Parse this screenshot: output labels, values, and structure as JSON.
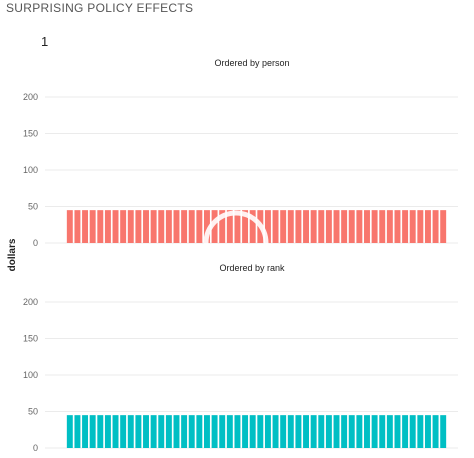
{
  "header": {
    "title": "SURPRISING POLICY EFFECTS"
  },
  "slide": {
    "number": "1"
  },
  "loading_indicator": {
    "icon": "loading-spinner-icon",
    "color": "#ffffff"
  },
  "chart_data": {
    "type": "bar",
    "ylabel": "dollars",
    "panels": [
      {
        "title": "Ordered by person",
        "color": "#F8766D",
        "yticks": [
          0,
          50,
          100,
          150,
          200
        ],
        "ylim": [
          0,
          200
        ],
        "x_ticks_shown": false,
        "values": [
          45,
          45,
          45,
          45,
          45,
          45,
          45,
          45,
          45,
          45,
          45,
          45,
          45,
          45,
          45,
          45,
          45,
          45,
          45,
          45,
          45,
          45,
          45,
          45,
          45,
          45,
          45,
          45,
          45,
          45,
          45,
          45,
          45,
          45,
          45,
          45,
          45,
          45,
          45,
          45,
          45,
          45,
          45,
          45,
          45,
          45,
          45,
          45,
          45,
          45
        ]
      },
      {
        "title": "Ordered by rank",
        "color": "#00BFC4",
        "yticks": [
          0,
          50,
          100,
          150,
          200
        ],
        "ylim": [
          0,
          200
        ],
        "x_ticks_shown": false,
        "values": [
          45,
          45,
          45,
          45,
          45,
          45,
          45,
          45,
          45,
          45,
          45,
          45,
          45,
          45,
          45,
          45,
          45,
          45,
          45,
          45,
          45,
          45,
          45,
          45,
          45,
          45,
          45,
          45,
          45,
          45,
          45,
          45,
          45,
          45,
          45,
          45,
          45,
          45,
          45,
          45,
          45,
          45,
          45,
          45,
          45,
          45,
          45,
          45,
          45,
          45
        ]
      }
    ]
  }
}
